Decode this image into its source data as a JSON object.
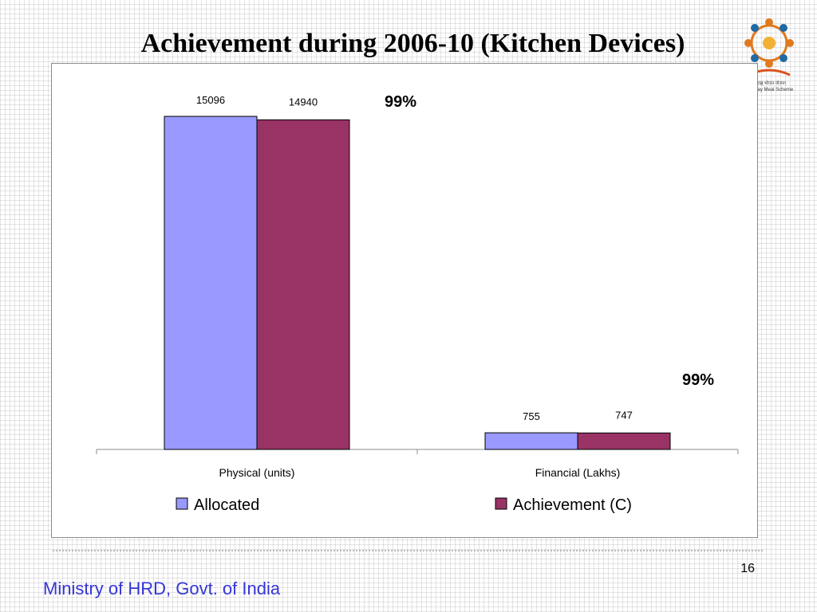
{
  "slide": {
    "title": "Achievement during 2006-10 (Kitchen Devices)",
    "footer": "Ministry of HRD, Govt. of India",
    "page_number": "16",
    "logo_text": [
      "मध्याह्न भोजन योजना",
      "Mid Day Meal Scheme"
    ]
  },
  "chart_data": {
    "type": "bar",
    "title": "",
    "xlabel": "",
    "ylabel": "",
    "categories": [
      "Physical (units)",
      "Financial (Lakhs)"
    ],
    "series": [
      {
        "name": "Allocated",
        "values": [
          15096,
          755
        ],
        "color": "#9999ff"
      },
      {
        "name": "Achievement (C)",
        "values": [
          14940,
          747
        ],
        "color": "#993366"
      }
    ],
    "data_labels": [
      [
        "15096",
        "755"
      ],
      [
        "14940",
        "747"
      ]
    ],
    "annotations": [
      "99%",
      "99%"
    ],
    "ylim": [
      0,
      16000
    ],
    "grid": false,
    "legend": "bottom"
  }
}
